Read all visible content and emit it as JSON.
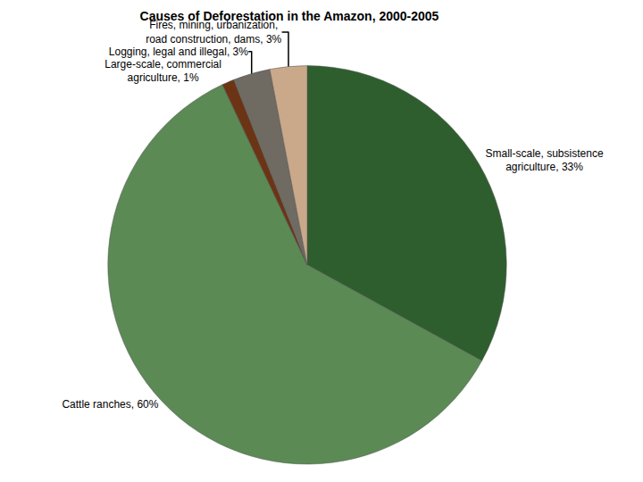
{
  "chart_data": {
    "type": "pie",
    "title": "Causes of Deforestation in the Amazon, 2000-2005",
    "categories": [
      "Small-scale, subsistence agriculture",
      "Cattle ranches",
      "Large-scale, commercial agriculture",
      "Logging, legal and illegal",
      "Fires, mining, urbanization, road construction, dams"
    ],
    "values": [
      33,
      60,
      1,
      3,
      3
    ],
    "value_labels": [
      "Small-scale, subsistence\nagriculture, 33%",
      "Cattle ranches, 60%",
      "Large-scale, commercial\nagriculture, 1%",
      "Logging, legal and illegal, 3%",
      "Fires, mining, urbanization,\nroad construction, dams, 3%"
    ],
    "colors": [
      "#2f5e2e",
      "#5b8a55",
      "#6b3515",
      "#6f6b62",
      "#c9a98a"
    ],
    "data_labels": true
  }
}
